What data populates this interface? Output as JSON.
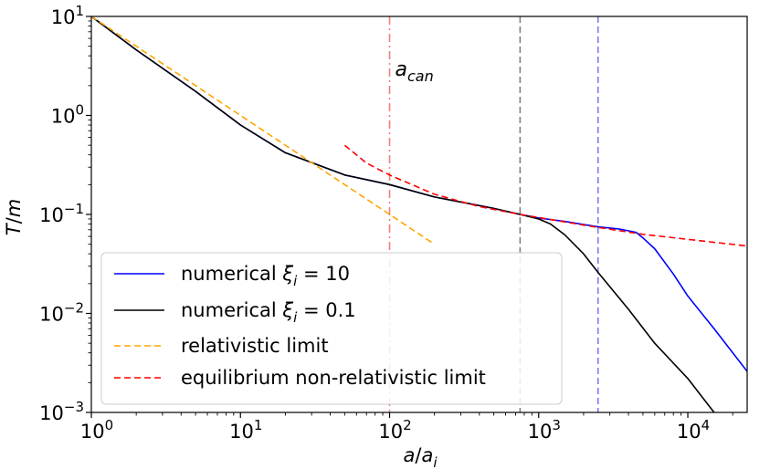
{
  "chart_data": {
    "type": "line",
    "title": "",
    "xscale": "log",
    "yscale": "log",
    "xlabel": "a/a_i",
    "ylabel": "T/m",
    "xlim": [
      1,
      25000
    ],
    "ylim": [
      0.001,
      10
    ],
    "x_ticks": [
      {
        "value": 1,
        "base": "10",
        "exp": "0"
      },
      {
        "value": 10,
        "base": "10",
        "exp": "1"
      },
      {
        "value": 100,
        "base": "10",
        "exp": "2"
      },
      {
        "value": 1000,
        "base": "10",
        "exp": "3"
      },
      {
        "value": 10000,
        "base": "10",
        "exp": "4"
      }
    ],
    "y_ticks": [
      {
        "value": 0.001,
        "base": "10",
        "exp": "−3"
      },
      {
        "value": 0.01,
        "base": "10",
        "exp": "−2"
      },
      {
        "value": 0.1,
        "base": "10",
        "exp": "−1"
      },
      {
        "value": 1,
        "base": "10",
        "exp": "0"
      },
      {
        "value": 10,
        "base": "10",
        "exp": "1"
      }
    ],
    "series": [
      {
        "name": "numerical ξ_i = 10",
        "label_main": "numerical ",
        "label_sym": "ξ",
        "label_sub": "i",
        "label_tail": " = 10",
        "color": "#0000ff",
        "style": "solid",
        "x": [
          1,
          2,
          5,
          10,
          20,
          50,
          100,
          200,
          500,
          750,
          1000,
          1500,
          2500,
          3500,
          4500,
          5000,
          6000,
          8000,
          10000,
          15000,
          25000
        ],
        "y": [
          10,
          4.6,
          1.75,
          0.8,
          0.42,
          0.25,
          0.2,
          0.15,
          0.115,
          0.1,
          0.092,
          0.085,
          0.075,
          0.071,
          0.066,
          0.058,
          0.045,
          0.025,
          0.015,
          0.007,
          0.0026
        ]
      },
      {
        "name": "numerical ξ_i = 0.1",
        "label_main": "numerical ",
        "label_sym": "ξ",
        "label_sub": "i",
        "label_tail": " = 0.1",
        "color": "#000000",
        "style": "solid",
        "x": [
          1,
          2,
          5,
          10,
          20,
          50,
          100,
          200,
          500,
          750,
          1000,
          1200,
          1500,
          2000,
          2500,
          4000,
          6000,
          10000,
          15000
        ],
        "y": [
          10,
          4.6,
          1.75,
          0.8,
          0.42,
          0.25,
          0.2,
          0.15,
          0.115,
          0.1,
          0.09,
          0.08,
          0.062,
          0.04,
          0.026,
          0.011,
          0.005,
          0.0022,
          0.001
        ]
      },
      {
        "name": "relativistic limit",
        "label_main": "relativistic limit",
        "color": "#ffa500",
        "style": "dashed",
        "x": [
          1,
          200
        ],
        "y": [
          10,
          0.05
        ]
      },
      {
        "name": "equilibrium non-relativistic limit",
        "label_main": "equilibrium non-relativistic limit",
        "color": "#ff0000",
        "style": "dashed",
        "x": [
          50,
          70,
          100,
          200,
          400,
          750,
          1000,
          2000,
          2500,
          5000,
          10000,
          25000
        ],
        "y": [
          0.5,
          0.33,
          0.25,
          0.16,
          0.12,
          0.1,
          0.093,
          0.078,
          0.074,
          0.063,
          0.056,
          0.048
        ]
      }
    ],
    "vlines": [
      {
        "x": 100,
        "color": "#f08080",
        "style": "dashdot",
        "label": "a_can"
      },
      {
        "x": 750,
        "color": "#808080",
        "style": "dashed"
      },
      {
        "x": 2500,
        "color": "#7b7bf5",
        "style": "dashed"
      }
    ],
    "annotation": {
      "text": "a",
      "sub": "can",
      "x": 100,
      "y": 3.1
    },
    "legend": {
      "position": "lower-left"
    }
  }
}
